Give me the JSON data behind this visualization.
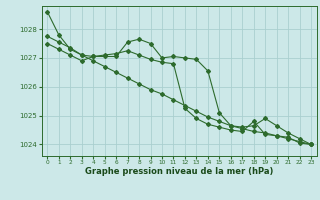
{
  "bg_color": "#cce8e8",
  "grid_color": "#aacfcf",
  "line_color": "#2d6b2d",
  "xlabel": "Graphe pression niveau de la mer (hPa)",
  "xlabel_color": "#1a4a1a",
  "xlim": [
    -0.5,
    23.5
  ],
  "ylim": [
    1023.6,
    1028.8
  ],
  "yticks": [
    1024,
    1025,
    1026,
    1027,
    1028
  ],
  "xticks": [
    0,
    1,
    2,
    3,
    4,
    5,
    6,
    7,
    8,
    9,
    10,
    11,
    12,
    13,
    14,
    15,
    16,
    17,
    18,
    19,
    20,
    21,
    22,
    23
  ],
  "line1_x": [
    0,
    1,
    2,
    3,
    4,
    5,
    6,
    7,
    8,
    9,
    10,
    11,
    12,
    13,
    14,
    15,
    16,
    17,
    18,
    19,
    20,
    21,
    22,
    23
  ],
  "line1_y": [
    1028.6,
    1027.8,
    1027.3,
    1027.1,
    1027.05,
    1027.05,
    1027.05,
    1027.55,
    1027.65,
    1027.5,
    1027.0,
    1027.05,
    1027.0,
    1026.95,
    1026.55,
    1025.1,
    1024.65,
    1024.6,
    1024.65,
    1024.9,
    1024.65,
    1024.4,
    1024.2,
    1024.0
  ],
  "line2_x": [
    0,
    1,
    2,
    3,
    4,
    5,
    6,
    7,
    8,
    9,
    10,
    11,
    12,
    13,
    14,
    15,
    16,
    17,
    18,
    19,
    20,
    21,
    22,
    23
  ],
  "line2_y": [
    1027.5,
    1027.3,
    1027.1,
    1026.9,
    1027.05,
    1027.1,
    1027.15,
    1027.25,
    1027.1,
    1026.95,
    1026.85,
    1026.8,
    1025.25,
    1024.9,
    1024.7,
    1024.6,
    1024.5,
    1024.45,
    1024.8,
    1024.35,
    1024.3,
    1024.25,
    1024.05,
    1024.0
  ],
  "line3_x": [
    0,
    1,
    2,
    3,
    4,
    5,
    6,
    7,
    8,
    9,
    10,
    11,
    12,
    13,
    14,
    15,
    16,
    17,
    18,
    19,
    20,
    21,
    22,
    23
  ],
  "line3_y": [
    1027.75,
    1027.55,
    1027.35,
    1027.1,
    1026.9,
    1026.7,
    1026.5,
    1026.3,
    1026.1,
    1025.9,
    1025.75,
    1025.55,
    1025.35,
    1025.15,
    1024.95,
    1024.8,
    1024.65,
    1024.55,
    1024.45,
    1024.4,
    1024.3,
    1024.2,
    1024.1,
    1024.0
  ]
}
